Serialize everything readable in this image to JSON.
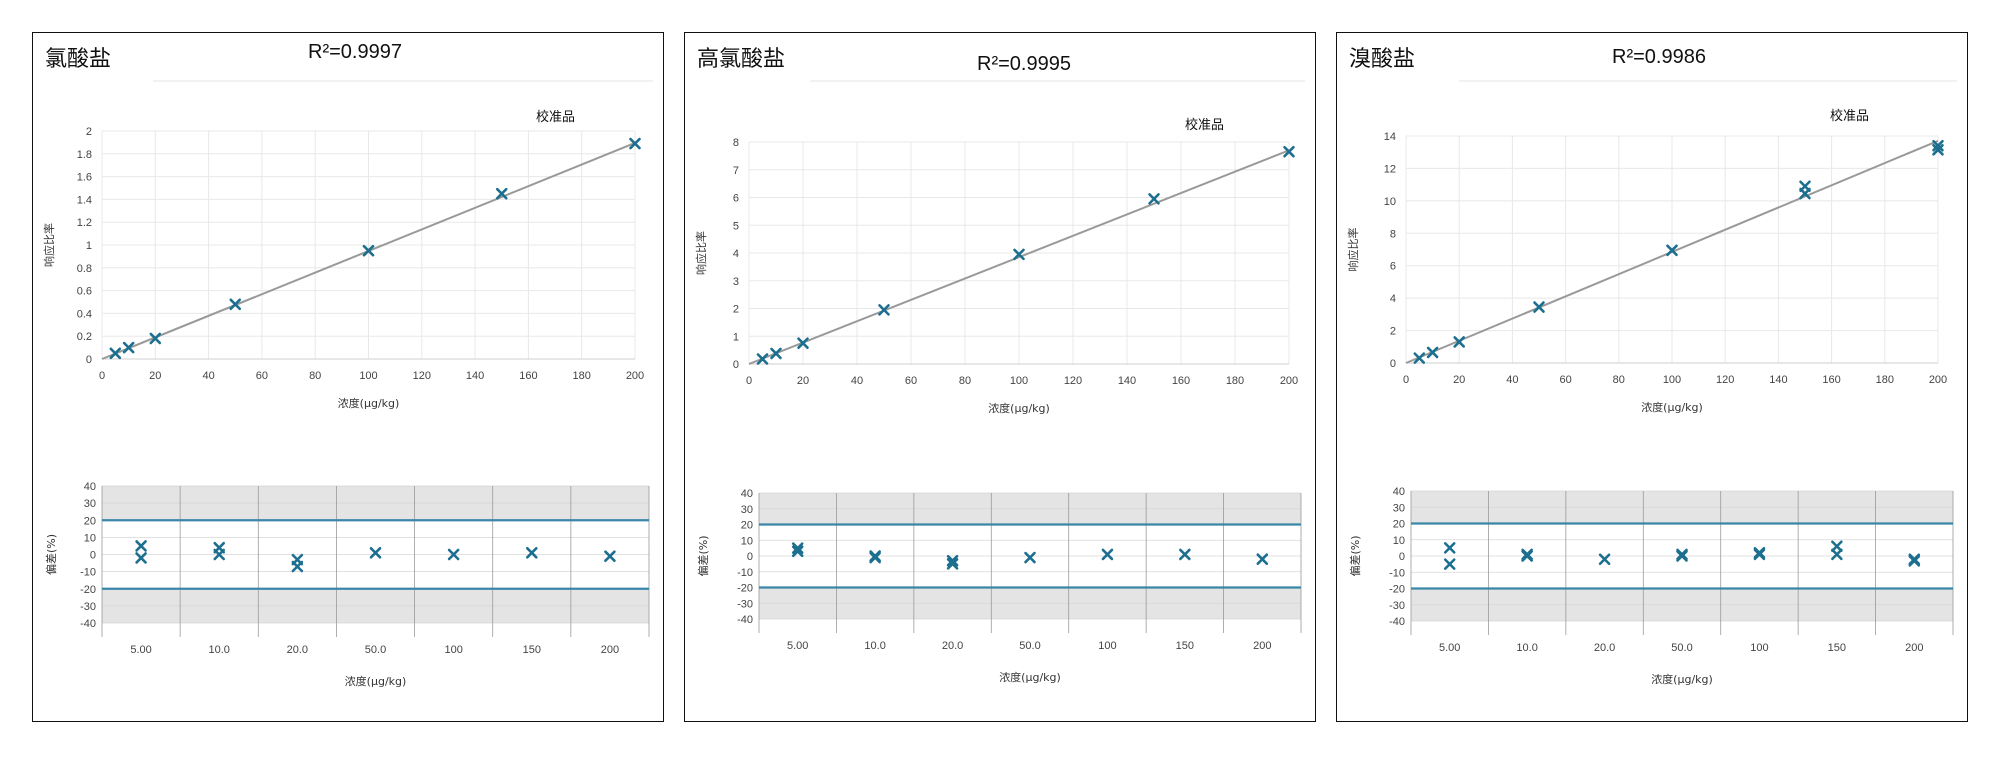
{
  "colors": {
    "marker": "#1d6f8f",
    "fit_line": "#999999",
    "limit_line": "#3a86a8",
    "band": "#e4e4e4",
    "grid": "#e8e8e8"
  },
  "chart_data": [
    {
      "title": "氯酸盐",
      "r2": "R²=0.9997",
      "legend": "校准品",
      "calibration": {
        "type": "scatter",
        "xlabel": "浓度(µg/kg)",
        "ylabel": "响应比率",
        "xlim": [
          0,
          200
        ],
        "ylim": [
          0,
          2
        ],
        "xticks": [
          0,
          20,
          40,
          60,
          80,
          100,
          120,
          140,
          160,
          180,
          200
        ],
        "yticks": [
          0,
          0.2,
          0.4,
          0.6,
          0.8,
          1,
          1.2,
          1.4,
          1.6,
          1.8,
          2
        ],
        "ytick_labels": [
          "0",
          "0.2",
          "0.4",
          "0.6",
          "0.8",
          "1",
          "1.2",
          "1.4",
          "1.6",
          "1.8",
          "2"
        ],
        "x": [
          5,
          10,
          20,
          50,
          100,
          150,
          200
        ],
        "y": [
          0.05,
          0.1,
          0.18,
          0.48,
          0.95,
          1.45,
          1.89
        ],
        "fit_line": {
          "x": [
            0,
            200
          ],
          "y": [
            0.0,
            1.895
          ]
        }
      },
      "deviation": {
        "type": "scatter",
        "xlabel": "浓度(µg/kg)",
        "ylabel": "偏差(%)",
        "categories": [
          "5.00",
          "10.0",
          "20.0",
          "50.0",
          "100",
          "150",
          "200"
        ],
        "ylim": [
          -40,
          40
        ],
        "yticks": [
          -40,
          -30,
          -20,
          -10,
          0,
          10,
          20,
          30,
          40
        ],
        "limits": [
          -20,
          20
        ],
        "points": [
          [
            0,
            5
          ],
          [
            0,
            -2
          ],
          [
            1,
            4
          ],
          [
            1,
            0
          ],
          [
            2,
            -3
          ],
          [
            2,
            -7
          ],
          [
            3,
            1
          ],
          [
            4,
            0
          ],
          [
            5,
            1
          ],
          [
            6,
            -1
          ]
        ]
      }
    },
    {
      "title": "高氯酸盐",
      "r2": "R²=0.9995",
      "legend": "校准品",
      "calibration": {
        "type": "scatter",
        "xlabel": "浓度(µg/kg)",
        "ylabel": "响应比率",
        "xlim": [
          0,
          200
        ],
        "ylim": [
          0,
          8
        ],
        "xticks": [
          0,
          20,
          40,
          60,
          80,
          100,
          120,
          140,
          160,
          180,
          200
        ],
        "yticks": [
          0,
          1,
          2,
          3,
          4,
          5,
          6,
          7,
          8
        ],
        "ytick_labels": [
          "0",
          "1",
          "2",
          "3",
          "4",
          "5",
          "6",
          "7",
          "8"
        ],
        "x": [
          5,
          10,
          20,
          50,
          100,
          150,
          200
        ],
        "y": [
          0.18,
          0.38,
          0.75,
          1.95,
          3.95,
          5.95,
          7.65
        ],
        "fit_line": {
          "x": [
            0,
            200
          ],
          "y": [
            0.0,
            7.7
          ]
        }
      },
      "deviation": {
        "type": "scatter",
        "xlabel": "浓度(µg/kg)",
        "ylabel": "偏差(%)",
        "categories": [
          "5.00",
          "10.0",
          "20.0",
          "50.0",
          "100",
          "150",
          "200"
        ],
        "ylim": [
          -40,
          40
        ],
        "yticks": [
          -40,
          -30,
          -20,
          -10,
          0,
          10,
          20,
          30,
          40
        ],
        "limits": [
          -20,
          20
        ],
        "points": [
          [
            0,
            5
          ],
          [
            0,
            3
          ],
          [
            1,
            0
          ],
          [
            1,
            -1
          ],
          [
            2,
            -3
          ],
          [
            2,
            -5
          ],
          [
            3,
            -1
          ],
          [
            4,
            1
          ],
          [
            5,
            1
          ],
          [
            6,
            -2
          ]
        ]
      }
    },
    {
      "title": "溴酸盐",
      "r2": "R²=0.9986",
      "legend": "校准品",
      "calibration": {
        "type": "scatter",
        "xlabel": "浓度(µg/kg)",
        "ylabel": "响应比率",
        "xlim": [
          0,
          200
        ],
        "ylim": [
          0,
          14
        ],
        "xticks": [
          0,
          20,
          40,
          60,
          80,
          100,
          120,
          140,
          160,
          180,
          200
        ],
        "yticks": [
          0,
          2,
          4,
          6,
          8,
          10,
          12,
          14
        ],
        "ytick_labels": [
          "0",
          "2",
          "4",
          "6",
          "8",
          "10",
          "12",
          "14"
        ],
        "x": [
          5,
          10,
          20,
          50,
          100,
          150,
          150,
          200,
          200
        ],
        "y": [
          0.3,
          0.65,
          1.3,
          3.45,
          6.95,
          10.9,
          10.45,
          13.4,
          13.15
        ],
        "fit_line": {
          "x": [
            0,
            200
          ],
          "y": [
            0.0,
            13.7
          ]
        }
      },
      "deviation": {
        "type": "scatter",
        "xlabel": "浓度(µg/kg)",
        "ylabel": "偏差(%)",
        "categories": [
          "5.00",
          "10.0",
          "20.0",
          "50.0",
          "100",
          "150",
          "200"
        ],
        "ylim": [
          -40,
          40
        ],
        "yticks": [
          -40,
          -30,
          -20,
          -10,
          0,
          10,
          20,
          30,
          40
        ],
        "limits": [
          -20,
          20
        ],
        "points": [
          [
            0,
            5
          ],
          [
            0,
            -5
          ],
          [
            1,
            1
          ],
          [
            1,
            0
          ],
          [
            2,
            -2
          ],
          [
            3,
            1
          ],
          [
            3,
            0
          ],
          [
            4,
            2
          ],
          [
            4,
            1
          ],
          [
            5,
            6
          ],
          [
            5,
            1
          ],
          [
            6,
            -2
          ],
          [
            6,
            -3
          ]
        ]
      }
    }
  ]
}
